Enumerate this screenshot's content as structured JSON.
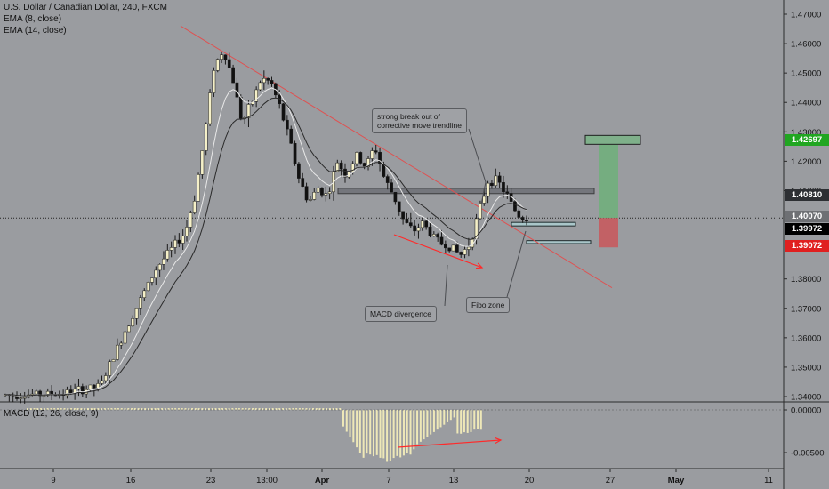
{
  "header": {
    "symbol": "U.S. Dollar / Canadian Dollar, 240, FXCM",
    "ema1": "EMA (8, close)",
    "ema2": "EMA (14, close)",
    "macd": "MACD (12, 26, close, 9)"
  },
  "annotations": {
    "breakout": "strong break out of\ncorrective move trendline",
    "macd_div": "MACD divergence",
    "fibo": "Fibo zone"
  },
  "price_tags": [
    {
      "value": "1.42697",
      "color": "#21a621"
    },
    {
      "value": "1.40810",
      "color": "#2d2f33"
    },
    {
      "value": "1.40070",
      "color": "#6e7074"
    },
    {
      "value": "1.39972",
      "color": "#000000"
    },
    {
      "value": "1.39072",
      "color": "#e02020"
    }
  ],
  "colors": {
    "background": "#9a9ca0",
    "candle_up": "#f5f0c8",
    "candle_down": "#111111",
    "ema_fast": "#e8e8e8",
    "ema_slow": "#2a2a2a",
    "trendline": "#e05050",
    "profit_zone": "#6fb07a",
    "loss_zone": "#c9575b",
    "macd_hist": "#eee8b8"
  },
  "chart_data": [
    {
      "type": "candlestick",
      "title": "U.S. Dollar / Canadian Dollar, 240, FXCM",
      "x_ticks": [
        "9",
        "16",
        "23",
        "13:00",
        "Apr",
        "7",
        "13",
        "20",
        "27",
        "May",
        "11"
      ],
      "y_ticks": [
        "1.47000",
        "1.46000",
        "1.45000",
        "1.44000",
        "1.43000",
        "1.42000",
        "1.41000",
        "1.38000",
        "1.37000",
        "1.36000",
        "1.35000",
        "1.34000"
      ],
      "ylim": [
        1.3385,
        1.4735
      ],
      "series": [
        {
          "name": "EMA (8, close)"
        },
        {
          "name": "EMA (14, close)"
        }
      ],
      "price_path": [
        [
          0,
          1.3405
        ],
        [
          6,
          1.341
        ],
        [
          10,
          1.3435
        ],
        [
          13,
          1.365
        ],
        [
          16,
          1.384
        ],
        [
          19,
          1.396
        ],
        [
          20,
          1.408
        ],
        [
          21,
          1.428
        ],
        [
          22,
          1.452
        ],
        [
          23,
          1.458
        ],
        [
          24,
          1.448
        ],
        [
          25,
          1.433
        ],
        [
          26,
          1.44
        ],
        [
          27,
          1.448
        ],
        [
          28,
          1.447
        ],
        [
          29,
          1.438
        ],
        [
          30,
          1.427
        ],
        [
          31,
          1.414
        ],
        [
          32,
          1.406
        ],
        [
          33,
          1.411
        ],
        [
          34,
          1.408
        ],
        [
          35,
          1.42
        ],
        [
          36,
          1.415
        ],
        [
          37,
          1.422
        ],
        [
          38,
          1.418
        ],
        [
          39,
          1.425
        ],
        [
          40,
          1.414
        ],
        [
          41,
          1.408
        ],
        [
          42,
          1.4
        ],
        [
          43,
          1.396
        ],
        [
          44,
          1.399
        ],
        [
          45,
          1.395
        ],
        [
          46,
          1.392
        ],
        [
          47,
          1.391
        ],
        [
          48,
          1.388
        ],
        [
          49,
          1.392
        ],
        [
          50,
          1.403
        ],
        [
          51,
          1.414
        ],
        [
          52,
          1.413
        ],
        [
          53,
          1.408
        ],
        [
          54,
          1.402
        ],
        [
          55,
          1.3997
        ]
      ],
      "horizontal_line": 1.4007,
      "trendline": [
        [
          1.466
        ],
        [
          1.377
        ]
      ],
      "resistance_zone": [
        1.409,
        1.4108
      ],
      "fibo_zones": [
        [
          1.398,
          1.3992
        ],
        [
          1.392,
          1.393
        ]
      ],
      "position": {
        "target": 1.42697,
        "entry": 1.4007,
        "stop": 1.39072
      }
    },
    {
      "type": "bar",
      "title": "MACD (12, 26, close, 9)",
      "y_ticks": [
        "0.00000",
        "-0.00500"
      ],
      "ylim": [
        -0.007,
        0.0004
      ],
      "divergence_arrow": true
    }
  ]
}
